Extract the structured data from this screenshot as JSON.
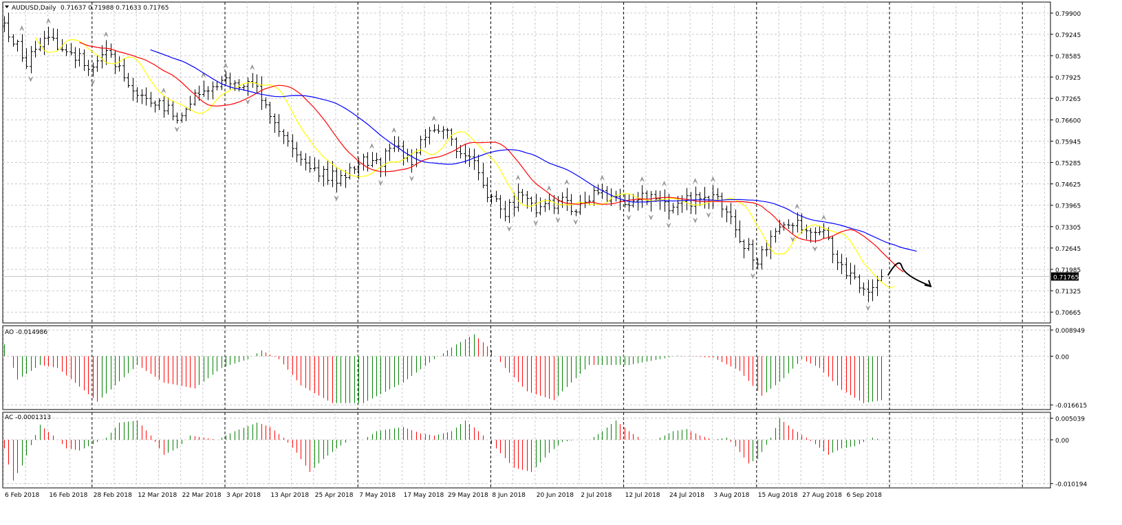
{
  "chart_data": [
    {
      "type": "ohlc",
      "symbol_header": "AUDUSD,Daily",
      "ohlc_header": "0.71637 0.71988 0.71633 0.71765",
      "ylim": [
        0.7033,
        0.8024
      ],
      "price_ticks": [
        "0.79900",
        "0.79245",
        "0.78585",
        "0.77925",
        "0.77265",
        "0.76600",
        "0.75945",
        "0.75285",
        "0.74625",
        "0.73965",
        "0.73305",
        "0.72645",
        "0.71985",
        "0.71325",
        "0.70665"
      ],
      "current_price_label": "0.71765",
      "current_price": 0.71765,
      "date_labels": [
        "6 Feb 2018",
        "16 Feb 2018",
        "28 Feb 2018",
        "12 Mar 2018",
        "22 Mar 2018",
        "3 Apr 2018",
        "13 Apr 2018",
        "25 Apr 2018",
        "7 May 2018",
        "17 May 2018",
        "29 May 2018",
        "8 Jun 2018",
        "20 Jun 2018",
        "2 Jul 2018",
        "12 Jul 2018",
        "24 Jul 2018",
        "3 Aug 2018",
        "15 Aug 2018",
        "27 Aug 2018",
        "6 Sep 2018"
      ],
      "anchors": [
        [
          0,
          0.795
        ],
        [
          5,
          0.784
        ],
        [
          9,
          0.791
        ],
        [
          14,
          0.789
        ],
        [
          19,
          0.782
        ],
        [
          24,
          0.787
        ],
        [
          29,
          0.774
        ],
        [
          33,
          0.771
        ],
        [
          37,
          0.77
        ],
        [
          39,
          0.767
        ],
        [
          42,
          0.772
        ],
        [
          47,
          0.776
        ],
        [
          52,
          0.778
        ],
        [
          57,
          0.775
        ],
        [
          60,
          0.768
        ],
        [
          64,
          0.759
        ],
        [
          68,
          0.754
        ],
        [
          72,
          0.749
        ],
        [
          76,
          0.748
        ],
        [
          80,
          0.754
        ],
        [
          84,
          0.752
        ],
        [
          88,
          0.758
        ],
        [
          92,
          0.753
        ],
        [
          95,
          0.761
        ],
        [
          99,
          0.763
        ],
        [
          102,
          0.758
        ],
        [
          106,
          0.755
        ],
        [
          109,
          0.744
        ],
        [
          113,
          0.738
        ],
        [
          117,
          0.743
        ],
        [
          121,
          0.738
        ],
        [
          125,
          0.741
        ],
        [
          129,
          0.739
        ],
        [
          133,
          0.744
        ],
        [
          137,
          0.741
        ],
        [
          141,
          0.74
        ],
        [
          145,
          0.742
        ],
        [
          149,
          0.739
        ],
        [
          153,
          0.741
        ],
        [
          157,
          0.741
        ],
        [
          161,
          0.741
        ],
        [
          164,
          0.737
        ],
        [
          167,
          0.727
        ],
        [
          170,
          0.723
        ],
        [
          174,
          0.732
        ],
        [
          178,
          0.735
        ],
        [
          182,
          0.732
        ],
        [
          184,
          0.733
        ],
        [
          187,
          0.725
        ],
        [
          190,
          0.718
        ],
        [
          193,
          0.716
        ],
        [
          196,
          0.713
        ],
        [
          198,
          0.718
        ]
      ],
      "series": [
        {
          "name": "",
          "color": "#ffff00",
          "type": "sma",
          "period": 5
        },
        {
          "name": "",
          "color": "#ff0000",
          "type": "sma",
          "period": 13
        },
        {
          "name": "",
          "color": "#0000ff",
          "type": "sma",
          "period": 26
        }
      ],
      "forecast_arrow": [
        [
          1.5,
          0.718
        ],
        [
          4,
          0.7208
        ],
        [
          11,
          0.7148
        ]
      ],
      "grid": true
    },
    {
      "type": "histogram",
      "label": "AO -0.014986",
      "ticks": [
        "0.008949",
        "0.00",
        "-0.016615"
      ],
      "ylim": [
        -0.0182,
        0.0104
      ],
      "colors": {
        "up": "#008000",
        "down": "#ff0000"
      },
      "anchors": [
        [
          0,
          0.004
        ],
        [
          3,
          -0.008
        ],
        [
          8,
          -0.003
        ],
        [
          12,
          -0.004
        ],
        [
          21,
          -0.0155
        ],
        [
          30,
          -0.003
        ],
        [
          36,
          -0.009
        ],
        [
          43,
          -0.011
        ],
        [
          49,
          -0.004
        ],
        [
          55,
          -0.001
        ],
        [
          58,
          0.002
        ],
        [
          62,
          -0.001
        ],
        [
          67,
          -0.01
        ],
        [
          74,
          -0.016
        ],
        [
          81,
          -0.016
        ],
        [
          90,
          -0.009
        ],
        [
          97,
          -0.001
        ],
        [
          102,
          0.004
        ],
        [
          106,
          0.0075
        ],
        [
          110,
          0.002
        ],
        [
          113,
          -0.004
        ],
        [
          118,
          -0.012
        ],
        [
          124,
          -0.015
        ],
        [
          132,
          -0.003
        ],
        [
          141,
          -0.003
        ],
        [
          148,
          -0.001
        ],
        [
          152,
          0.0002
        ],
        [
          160,
          -0.0005
        ],
        [
          166,
          -0.005
        ],
        [
          171,
          -0.0135
        ],
        [
          176,
          -0.0075
        ],
        [
          180,
          -0.001
        ],
        [
          184,
          -0.004
        ],
        [
          189,
          -0.0115
        ],
        [
          194,
          -0.016
        ],
        [
          198,
          -0.015
        ]
      ]
    },
    {
      "type": "histogram",
      "label": "AC -0.0001313",
      "ticks": [
        "0.005039",
        "0.00",
        "-0.010194"
      ],
      "ylim": [
        -0.0112,
        0.0064
      ],
      "colors": {
        "up": "#008000",
        "down": "#ff0000"
      },
      "anchors": [
        [
          0,
          -0.002
        ],
        [
          2,
          -0.0095
        ],
        [
          4,
          -0.006
        ],
        [
          8,
          0.0035
        ],
        [
          11,
          0.001
        ],
        [
          14,
          -0.002
        ],
        [
          17,
          -0.0025
        ],
        [
          20,
          -0.001
        ],
        [
          23,
          0.0005
        ],
        [
          26,
          0.004
        ],
        [
          30,
          0.0045
        ],
        [
          33,
          0.001
        ],
        [
          36,
          -0.0035
        ],
        [
          39,
          -0.002
        ],
        [
          42,
          0.001
        ],
        [
          45,
          0.0005
        ],
        [
          48,
          0.0,
          ""
        ],
        [
          52,
          0.002
        ],
        [
          57,
          0.004
        ],
        [
          60,
          0.003
        ],
        [
          63,
          0.0005
        ],
        [
          66,
          -0.003
        ],
        [
          69,
          -0.0075
        ],
        [
          72,
          -0.0045
        ],
        [
          75,
          -0.002
        ],
        [
          78,
          0.0
        ],
        [
          81,
          0.0
        ],
        [
          84,
          0.002
        ],
        [
          87,
          0.0025
        ],
        [
          90,
          0.003
        ],
        [
          94,
          0.0015
        ],
        [
          97,
          0.001
        ],
        [
          101,
          0.002
        ],
        [
          104,
          0.0045
        ],
        [
          107,
          0.002
        ],
        [
          111,
          -0.002
        ],
        [
          115,
          -0.0065
        ],
        [
          119,
          -0.0075
        ],
        [
          123,
          -0.003
        ],
        [
          126,
          -0.0005
        ],
        [
          129,
          0.0
        ],
        [
          132,
          0.0
        ],
        [
          135,
          0.002
        ],
        [
          138,
          0.0045
        ],
        [
          141,
          0.002
        ],
        [
          144,
          0.0
        ],
        [
          147,
          0.0
        ],
        [
          151,
          0.002
        ],
        [
          154,
          0.0025
        ],
        [
          157,
          0.001
        ],
        [
          160,
          0.0
        ],
        [
          163,
          0.0005
        ],
        [
          165,
          -0.0015
        ],
        [
          168,
          -0.0055
        ],
        [
          170,
          -0.0045
        ],
        [
          173,
          0.0005
        ],
        [
          175,
          0.005
        ],
        [
          178,
          0.0025
        ],
        [
          181,
          0.0005
        ],
        [
          183,
          -0.001
        ],
        [
          186,
          -0.0035
        ],
        [
          189,
          -0.002
        ],
        [
          192,
          -0.0015
        ],
        [
          196,
          0.0005
        ],
        [
          198,
          0.0
        ]
      ]
    }
  ]
}
